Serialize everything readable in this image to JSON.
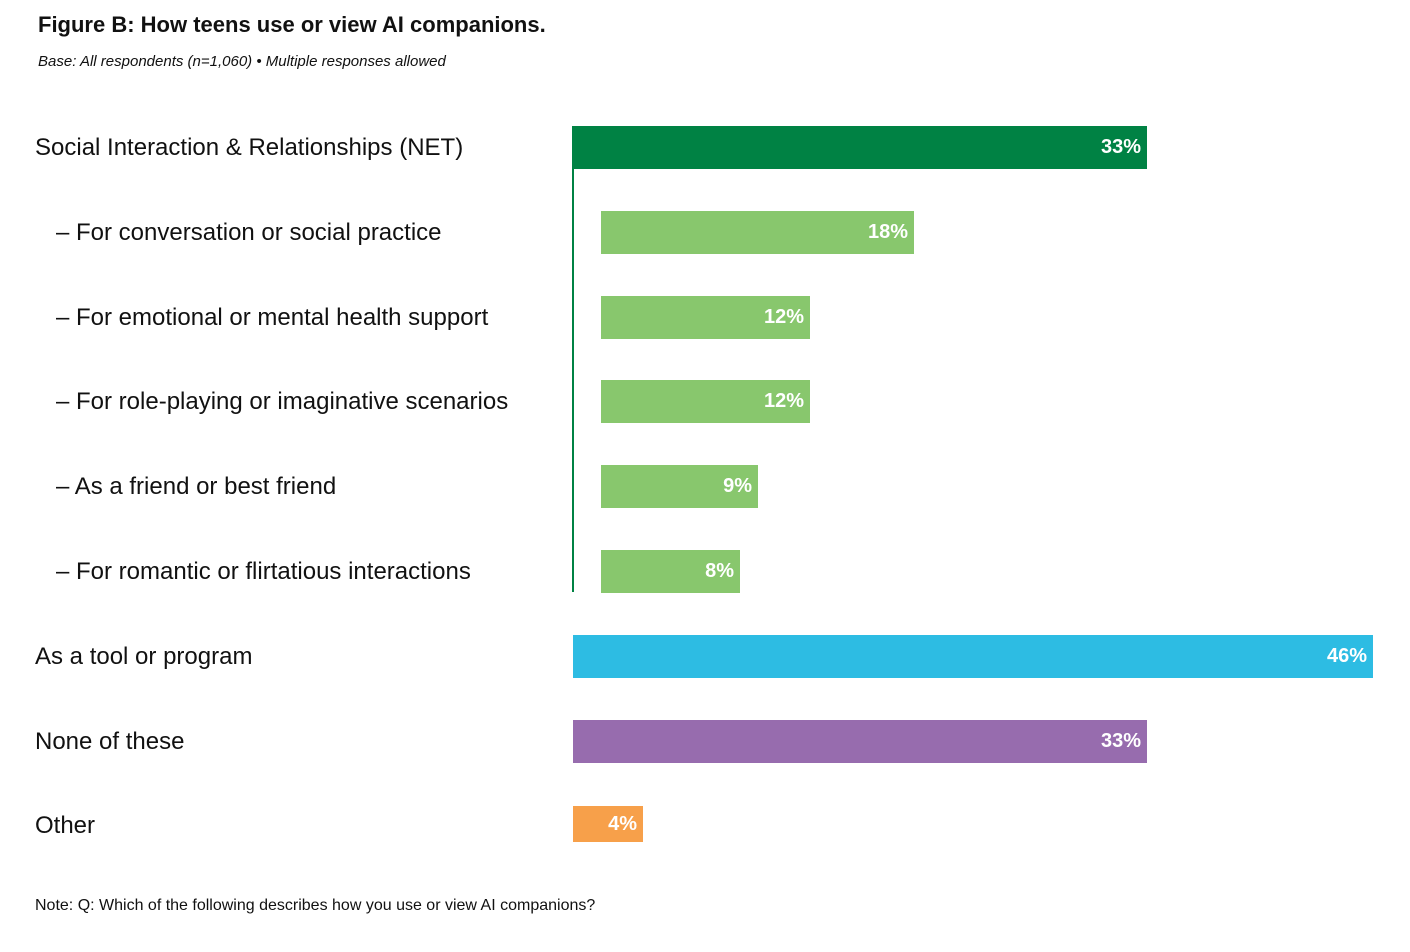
{
  "header": {
    "title": "Figure B: How teens use or view AI companions.",
    "subtitle": "Base: All respondents (n=1,060) • Multiple responses allowed"
  },
  "footer": {
    "note": "Note: Q: Which of the following describes how you use or view AI companions?"
  },
  "chart_data": {
    "type": "bar",
    "orientation": "horizontal",
    "title": "Figure B: How teens use or view AI companions.",
    "xlabel": "",
    "ylabel": "",
    "xlim": [
      0,
      46
    ],
    "unit": "%",
    "categories": [
      "Social Interaction & Relationships (NET)",
      "– For conversation or social practice",
      "– For emotional or mental health support",
      "– For role-playing or imaginative scenarios",
      "– As a friend or best friend",
      "– For romantic or flirtatious interactions",
      "As a tool or program",
      "None of these",
      "Other"
    ],
    "values": [
      33,
      18,
      12,
      12,
      9,
      8,
      46,
      33,
      4
    ],
    "value_labels": [
      "33%",
      "18%",
      "12%",
      "12%",
      "9%",
      "8%",
      "46%",
      "33%",
      "4%"
    ],
    "groups": [
      "net",
      "sub",
      "sub",
      "sub",
      "sub",
      "sub",
      "tool",
      "none",
      "other"
    ],
    "colors": {
      "net": "#008244",
      "sub": "#88C76D",
      "tool": "#2DBCE3",
      "none": "#976CAE",
      "other": "#F7A04A"
    }
  }
}
